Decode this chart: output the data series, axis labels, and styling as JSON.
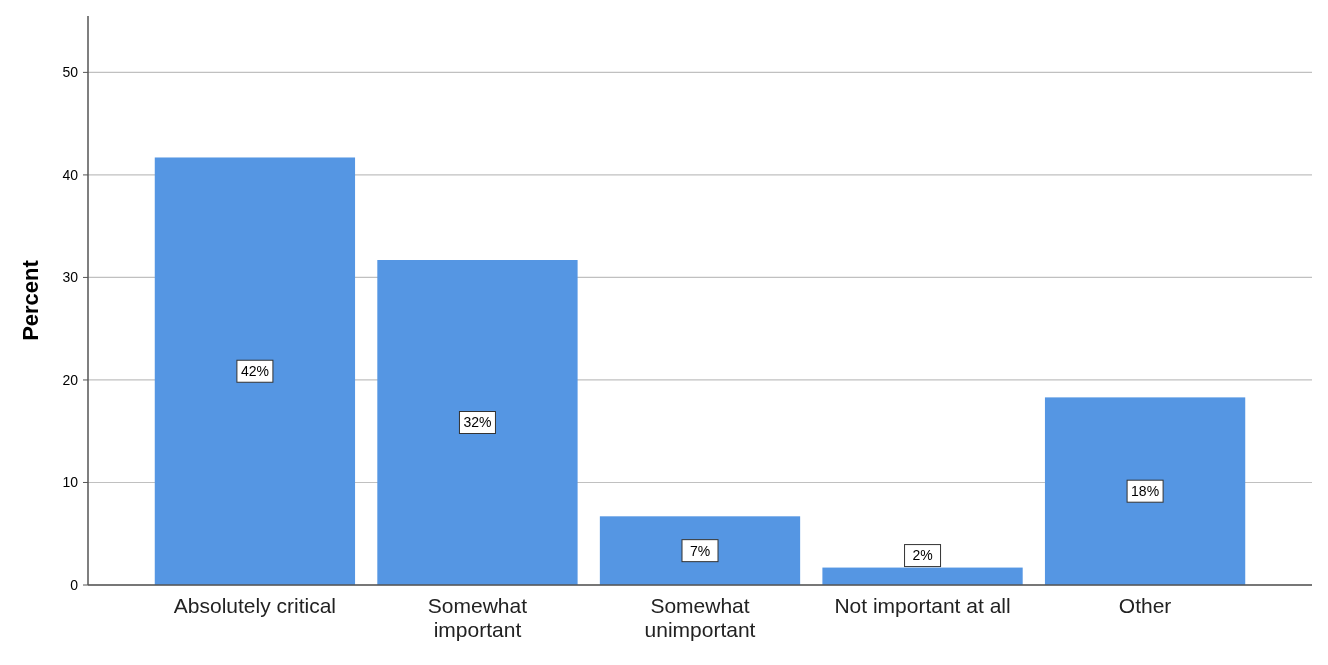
{
  "chart_data": {
    "type": "bar",
    "ylabel": "Percent",
    "categories": [
      "Absolutely critical",
      "Somewhat important",
      "Somewhat unimportant",
      "Not important at all",
      "Other"
    ],
    "values": [
      41.7,
      31.7,
      6.7,
      1.7,
      18.3
    ],
    "color": "#5596e3",
    "value_labels": [
      "42%",
      "32%",
      "7%",
      "2%",
      "18%"
    ],
    "ylim": [
      0,
      55.5
    ],
    "yticks": [
      0,
      10,
      20,
      30,
      40,
      50
    ],
    "grid": "y"
  }
}
